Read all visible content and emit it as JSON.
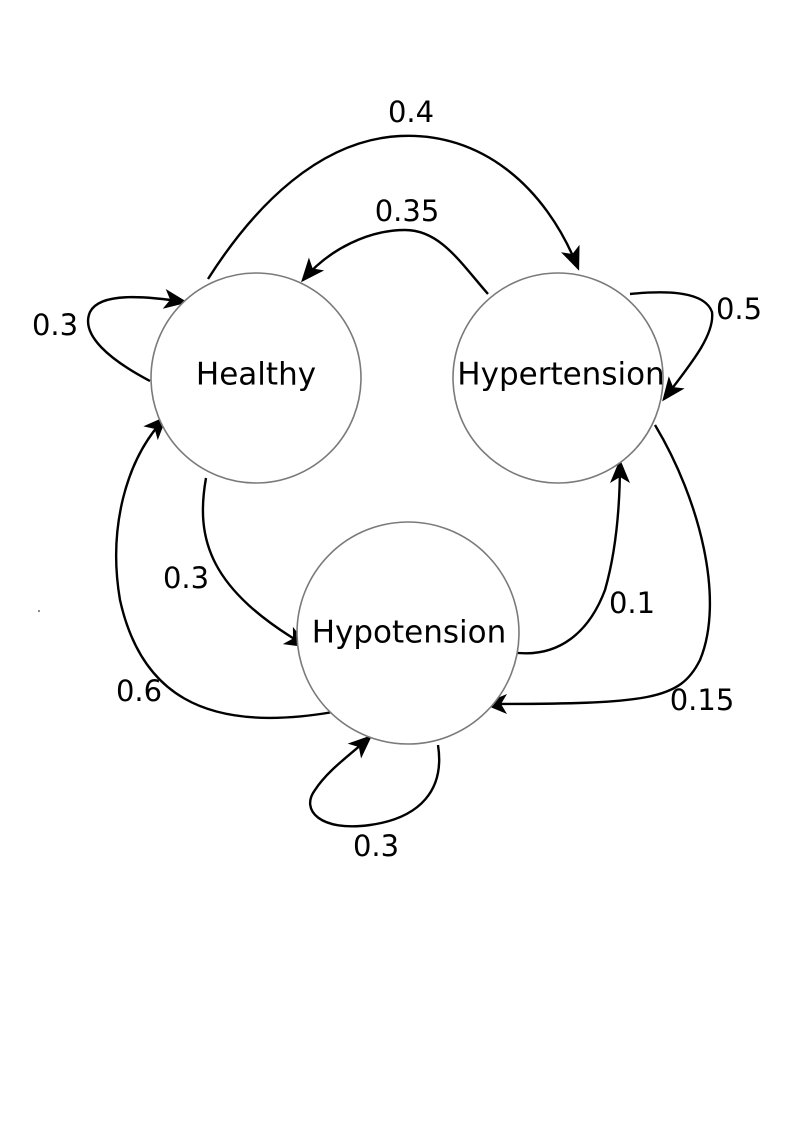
{
  "states": {
    "healthy": "Healthy",
    "hypertension": "Hypertension",
    "hypotension": "Hypotension"
  },
  "transitions": {
    "healthy_to_healthy": "0.3",
    "healthy_to_hypertension": "0.4",
    "hypertension_to_healthy": "0.35",
    "hypertension_to_hypertension": "0.5",
    "healthy_to_hypotension": "0.3",
    "hypotension_to_hypertension": "0.1",
    "hypertension_to_hypotension": "0.15",
    "hypotension_to_healthy": "0.6",
    "hypotension_to_hypotension": "0.3"
  }
}
